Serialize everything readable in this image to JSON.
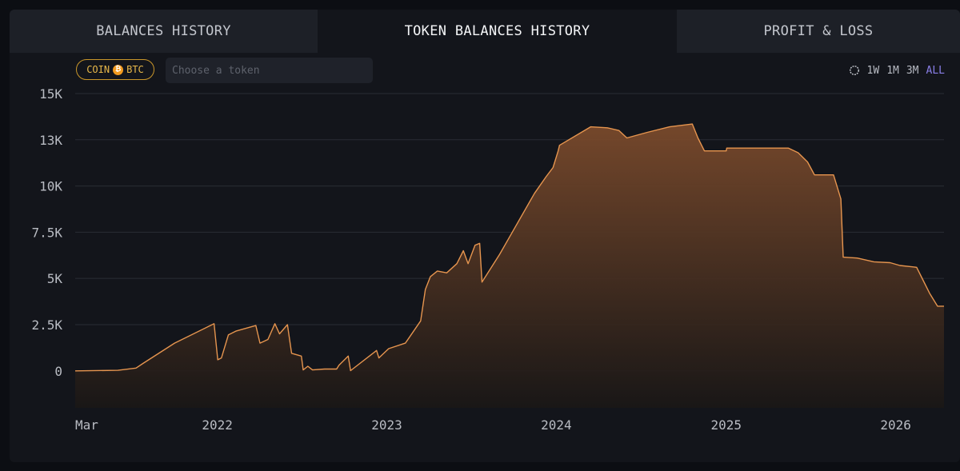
{
  "tabs": [
    {
      "label": "BALANCES HISTORY",
      "active": false
    },
    {
      "label": "TOKEN BALANCES HISTORY",
      "active": true
    },
    {
      "label": "PROFIT & LOSS",
      "active": false
    }
  ],
  "filter": {
    "coin_label": "COIN",
    "coin_icon": "btc-icon",
    "coin_symbol": "BTC",
    "token_placeholder": "Choose a token",
    "token_value": ""
  },
  "range_selector": {
    "reset_icon": "reset-icon",
    "options": [
      "1W",
      "1M",
      "3M",
      "ALL"
    ],
    "active": "ALL",
    "active_color": "#8a7fe8"
  },
  "colors": {
    "line": "#e6954f",
    "fill_top": "#7a4a2c",
    "fill_bottom": "#1a1716",
    "accent": "#8a7fe8"
  },
  "chart_data": {
    "type": "area",
    "title": "",
    "xlabel": "",
    "ylabel": "",
    "x_ticks": [
      "Mar",
      "2022",
      "2023",
      "2024",
      "2025",
      "2026"
    ],
    "x_tick_dates": [
      "2021-03-01",
      "2022-01-01",
      "2023-01-01",
      "2024-01-01",
      "2025-01-01",
      "2026-01-01"
    ],
    "y_ticks": [
      0,
      2500,
      5000,
      7500,
      10000,
      12500,
      15000
    ],
    "y_tick_labels": [
      "0",
      "2.5K",
      "5K",
      "7.5K",
      "10K",
      "13K",
      "15K"
    ],
    "ylim": [
      -2000,
      15000
    ],
    "xlim": [
      "2021-03-01",
      "2026-04-15"
    ],
    "grid": true,
    "legend": "none",
    "series": [
      {
        "points": [
          [
            "2021-03-01",
            0
          ],
          [
            "2021-06-01",
            30
          ],
          [
            "2021-07-10",
            150
          ],
          [
            "2021-07-25",
            400
          ],
          [
            "2021-10-01",
            1500
          ],
          [
            "2021-12-25",
            2550
          ],
          [
            "2022-01-02",
            600
          ],
          [
            "2022-01-10",
            700
          ],
          [
            "2022-01-25",
            1950
          ],
          [
            "2022-02-10",
            2150
          ],
          [
            "2022-03-25",
            2450
          ],
          [
            "2022-04-03",
            1500
          ],
          [
            "2022-04-20",
            1700
          ],
          [
            "2022-05-05",
            2550
          ],
          [
            "2022-05-15",
            2000
          ],
          [
            "2022-06-01",
            2500
          ],
          [
            "2022-06-10",
            950
          ],
          [
            "2022-07-01",
            800
          ],
          [
            "2022-07-05",
            50
          ],
          [
            "2022-07-15",
            250
          ],
          [
            "2022-07-25",
            50
          ],
          [
            "2022-08-20",
            100
          ],
          [
            "2022-09-15",
            100
          ],
          [
            "2022-09-20",
            300
          ],
          [
            "2022-10-10",
            800
          ],
          [
            "2022-10-15",
            10
          ],
          [
            "2022-12-10",
            1100
          ],
          [
            "2022-12-15",
            700
          ],
          [
            "2023-01-05",
            1200
          ],
          [
            "2023-02-10",
            1500
          ],
          [
            "2023-03-15",
            2700
          ],
          [
            "2023-03-25",
            4400
          ],
          [
            "2023-04-05",
            5100
          ],
          [
            "2023-04-20",
            5400
          ],
          [
            "2023-05-10",
            5300
          ],
          [
            "2023-06-01",
            5800
          ],
          [
            "2023-06-15",
            6500
          ],
          [
            "2023-06-25",
            5800
          ],
          [
            "2023-07-10",
            6800
          ],
          [
            "2023-07-20",
            6900
          ],
          [
            "2023-07-25",
            4800
          ],
          [
            "2023-09-01",
            6300
          ],
          [
            "2023-11-15",
            9600
          ],
          [
            "2023-12-10",
            10500
          ],
          [
            "2023-12-25",
            11000
          ],
          [
            "2024-01-05",
            11900
          ],
          [
            "2024-01-08",
            12200
          ],
          [
            "2024-03-15",
            13200
          ],
          [
            "2024-04-20",
            13150
          ],
          [
            "2024-05-15",
            13000
          ],
          [
            "2024-06-01",
            12600
          ],
          [
            "2024-07-15",
            12900
          ],
          [
            "2024-09-01",
            13200
          ],
          [
            "2024-10-20",
            13350
          ],
          [
            "2024-11-01",
            12600
          ],
          [
            "2024-11-15",
            11900
          ],
          [
            "2025-01-01",
            11900
          ],
          [
            "2025-01-02",
            12050
          ],
          [
            "2025-05-15",
            12050
          ],
          [
            "2025-06-05",
            11800
          ],
          [
            "2025-06-25",
            11300
          ],
          [
            "2025-07-10",
            10600
          ],
          [
            "2025-08-20",
            10600
          ],
          [
            "2025-09-05",
            9300
          ],
          [
            "2025-09-10",
            6150
          ],
          [
            "2025-10-10",
            6100
          ],
          [
            "2025-11-15",
            5900
          ],
          [
            "2025-12-20",
            5850
          ],
          [
            "2026-01-10",
            5700
          ],
          [
            "2026-02-15",
            5600
          ],
          [
            "2026-03-01",
            4900
          ],
          [
            "2026-03-15",
            4200
          ],
          [
            "2026-04-01",
            3500
          ],
          [
            "2026-04-15",
            3500
          ]
        ]
      }
    ]
  }
}
